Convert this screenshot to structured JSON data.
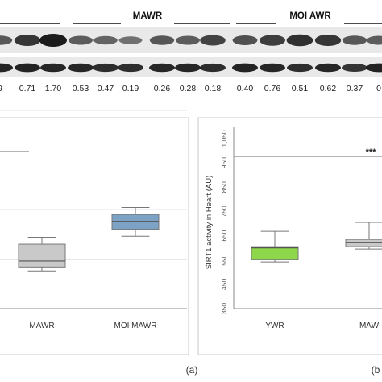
{
  "blot": {
    "groups": [
      {
        "name": "",
        "line_only": true
      },
      {
        "name": "MAWR"
      },
      {
        "name": "MOI AWR"
      }
    ],
    "ratios": [
      "9",
      "0.71",
      "1.70",
      "0.53",
      "0.47",
      "0.19",
      "0.26",
      "0.28",
      "0.18",
      "0.40",
      "0.76",
      "0.51",
      "0.62",
      "0.37",
      "0"
    ],
    "upper_band_intensity": [
      0.55,
      0.8,
      1.0,
      0.5,
      0.45,
      0.35,
      0.55,
      0.5,
      0.7,
      0.6,
      0.75,
      0.85,
      0.8,
      0.55,
      0.5
    ],
    "lower_band_intensity": [
      0.95,
      0.95,
      0.9,
      0.9,
      0.85,
      0.85,
      0.9,
      0.9,
      0.85,
      0.95,
      0.9,
      0.85,
      0.9,
      0.8,
      0.95
    ]
  },
  "panel_left": {
    "caption": "(a)",
    "categories": [
      "MAWR",
      "MOI MAWR"
    ]
  },
  "panel_right": {
    "caption": "(b",
    "ylabel": "SIRT1 activity in Heart (AU)",
    "yticks": [
      "1,050",
      "950",
      "850",
      "750",
      "650",
      "550",
      "450",
      "350"
    ],
    "categories": [
      "YWR",
      "MAW"
    ],
    "significance": "***"
  },
  "chart_data": [
    {
      "type": "box",
      "title": "",
      "categories": [
        "MAWR",
        "MOI MAWR"
      ],
      "boxes": [
        {
          "min": 0.38,
          "q1": 0.42,
          "median": 0.48,
          "q3": 0.65,
          "max": 0.72,
          "color": "#c9c9c9"
        },
        {
          "min": 0.73,
          "q1": 0.8,
          "median": 0.88,
          "q3": 0.95,
          "max": 1.02,
          "color": "#7ca2c6"
        }
      ],
      "reference_line": 1.6
    },
    {
      "type": "box",
      "title": "",
      "ylabel": "SIRT1 activity in Heart (AU)",
      "ylim": [
        350,
        1050
      ],
      "categories": [
        "YWR",
        "MAW"
      ],
      "boxes": [
        {
          "min": 542,
          "q1": 553,
          "median": 600,
          "q3": 605,
          "max": 668,
          "color": "#8ed64a"
        },
        {
          "min": 595,
          "q1": 605,
          "median": 623,
          "q3": 635,
          "max": 705,
          "color": "#c9c9c9"
        }
      ],
      "significance": {
        "label": "***",
        "y": 960
      }
    }
  ]
}
